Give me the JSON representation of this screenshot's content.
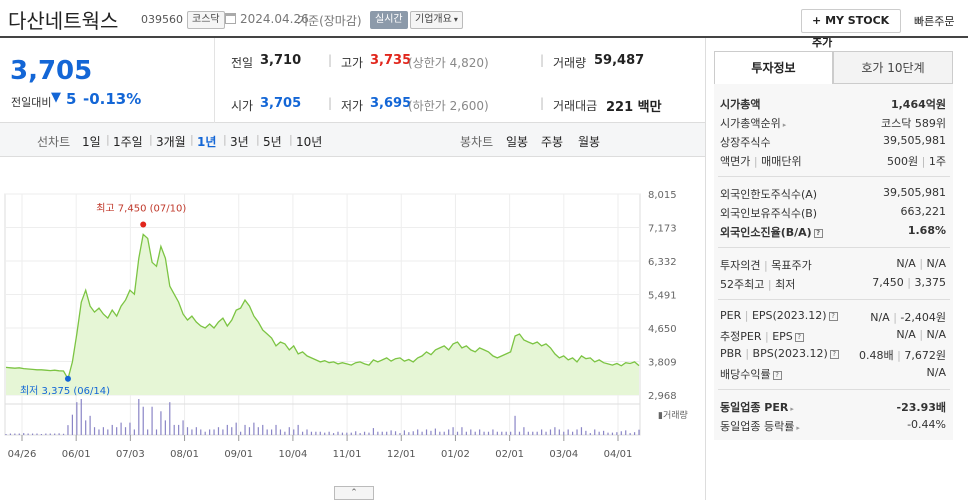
{
  "header": {
    "company": "다산네트웍스",
    "code": "039560",
    "market": "코스닥",
    "date": "2024.04.26",
    "basis": "기준(장마감)",
    "realtime": "실시간",
    "overview": "기업개요",
    "mystock": "MY STOCK 추가",
    "quick_order": "빠른주문"
  },
  "price": {
    "current": "3,705",
    "change_label": "전일대비",
    "change": "5",
    "change_pct": "-0.13%"
  },
  "stats": {
    "prev_label": "전일",
    "prev": "3,710",
    "high_label": "고가",
    "high": "3,735",
    "upper_limit": "(상한가 4,820)",
    "volume_label": "거래량",
    "volume": "59,487",
    "open_label": "시가",
    "open": "3,705",
    "low_label": "저가",
    "low": "3,695",
    "lower_limit": "(하한가 2,600)",
    "amount_label": "거래대금",
    "amount": "221 백만"
  },
  "period_tabs": {
    "line_label": "선차트",
    "line": [
      "1일",
      "1주일",
      "3개월",
      "1년",
      "3년",
      "5년",
      "10년"
    ],
    "active": "1년",
    "candle_label": "봉차트",
    "candle": [
      "일봉",
      "주봉",
      "월봉"
    ]
  },
  "right_tabs": [
    "투자정보",
    "호가 10단계"
  ],
  "invest": {
    "market_cap_label": "시가총액",
    "market_cap": "1,464억원",
    "rank_label": "시가총액순위",
    "rank": "코스닥 589위",
    "shares_label": "상장주식수",
    "shares": "39,505,981",
    "par_label": "액면가",
    "unit_label": "매매단위",
    "par": "500원",
    "unit": "1주",
    "foreign_limit_label": "외국인한도주식수(A)",
    "foreign_limit": "39,505,981",
    "foreign_hold_label": "외국인보유주식수(B)",
    "foreign_hold": "663,221",
    "foreign_ratio_label": "외국인소진율(B/A)",
    "foreign_ratio": "1.68%",
    "opinion_label": "투자의견",
    "target_label": "목표주가",
    "opinion": "N/A",
    "target": "N/A",
    "wk52_high_label": "52주최고",
    "wk52_low_label": "최저",
    "wk52_high": "7,450",
    "wk52_low": "3,375",
    "per_label": "PER",
    "eps_label": "EPS(2023.12)",
    "per": "N/A",
    "eps": "-2,404원",
    "est_per_label": "추정PER",
    "est_eps_label": "EPS",
    "est_per": "N/A",
    "est_eps": "N/A",
    "pbr_label": "PBR",
    "bps_label": "BPS(2023.12)",
    "pbr": "0.48배",
    "bps": "7,672원",
    "div_label": "배당수익률",
    "div": "N/A",
    "ind_per_label": "동일업종 PER",
    "ind_per": "-23.93배",
    "ind_chg_label": "동일업종 등락률",
    "ind_chg": "-0.44%"
  },
  "chart_data": {
    "type": "area",
    "x_ticks": [
      "04/26",
      "06/01",
      "07/03",
      "08/01",
      "09/01",
      "10/04",
      "11/01",
      "12/01",
      "01/02",
      "02/01",
      "03/04",
      "04/01"
    ],
    "y_ticks": [
      "8,015",
      "7,173",
      "6,332",
      "5,491",
      "4,650",
      "3,809",
      "2,968"
    ],
    "ylim": [
      2968,
      8015
    ],
    "high_annotation": "최고 7,450 (07/10)",
    "low_annotation": "최저 3,375 (06/14)",
    "volume_label": "거래량",
    "color": "#7cc443",
    "values": [
      3660,
      3650,
      3640,
      3650,
      3630,
      3620,
      3610,
      3600,
      3600,
      3590,
      3580,
      3590,
      3575,
      3570,
      3375,
      3800,
      4500,
      5300,
      5600,
      5200,
      5050,
      5150,
      5000,
      4900,
      5100,
      4950,
      5200,
      5350,
      5600,
      5500,
      6400,
      7000,
      6900,
      6300,
      6200,
      6700,
      6400,
      5700,
      5500,
      5300,
      5000,
      4850,
      4950,
      4800,
      4700,
      4650,
      4750,
      4650,
      4800,
      4900,
      4700,
      4850,
      5100,
      5150,
      5350,
      5200,
      4950,
      4800,
      4600,
      4500,
      4400,
      4200,
      4300,
      4250,
      4100,
      4200,
      4000,
      4050,
      3950,
      3900,
      3850,
      3800,
      3830,
      3780,
      3800,
      3750,
      3780,
      3750,
      3720,
      3780,
      3800,
      3750,
      3720,
      3850,
      3800,
      3850,
      3900,
      3820,
      3880,
      3900,
      3820,
      3860,
      3800,
      3900,
      3950,
      4050,
      3980,
      4100,
      4150,
      4200,
      4100,
      4250,
      4300,
      4150,
      4200,
      4100,
      4050,
      4150,
      4100,
      4050,
      3950,
      3900,
      3950,
      4000,
      4050,
      4450,
      4500,
      4350,
      4300,
      4250,
      4300,
      4200,
      4250,
      4150,
      4000,
      3900,
      3950,
      3850,
      3900,
      3800,
      3950,
      3880,
      3900,
      3800,
      3850,
      3780,
      3750,
      3720,
      3760,
      3700,
      3780,
      3760,
      3800,
      3705
    ]
  }
}
